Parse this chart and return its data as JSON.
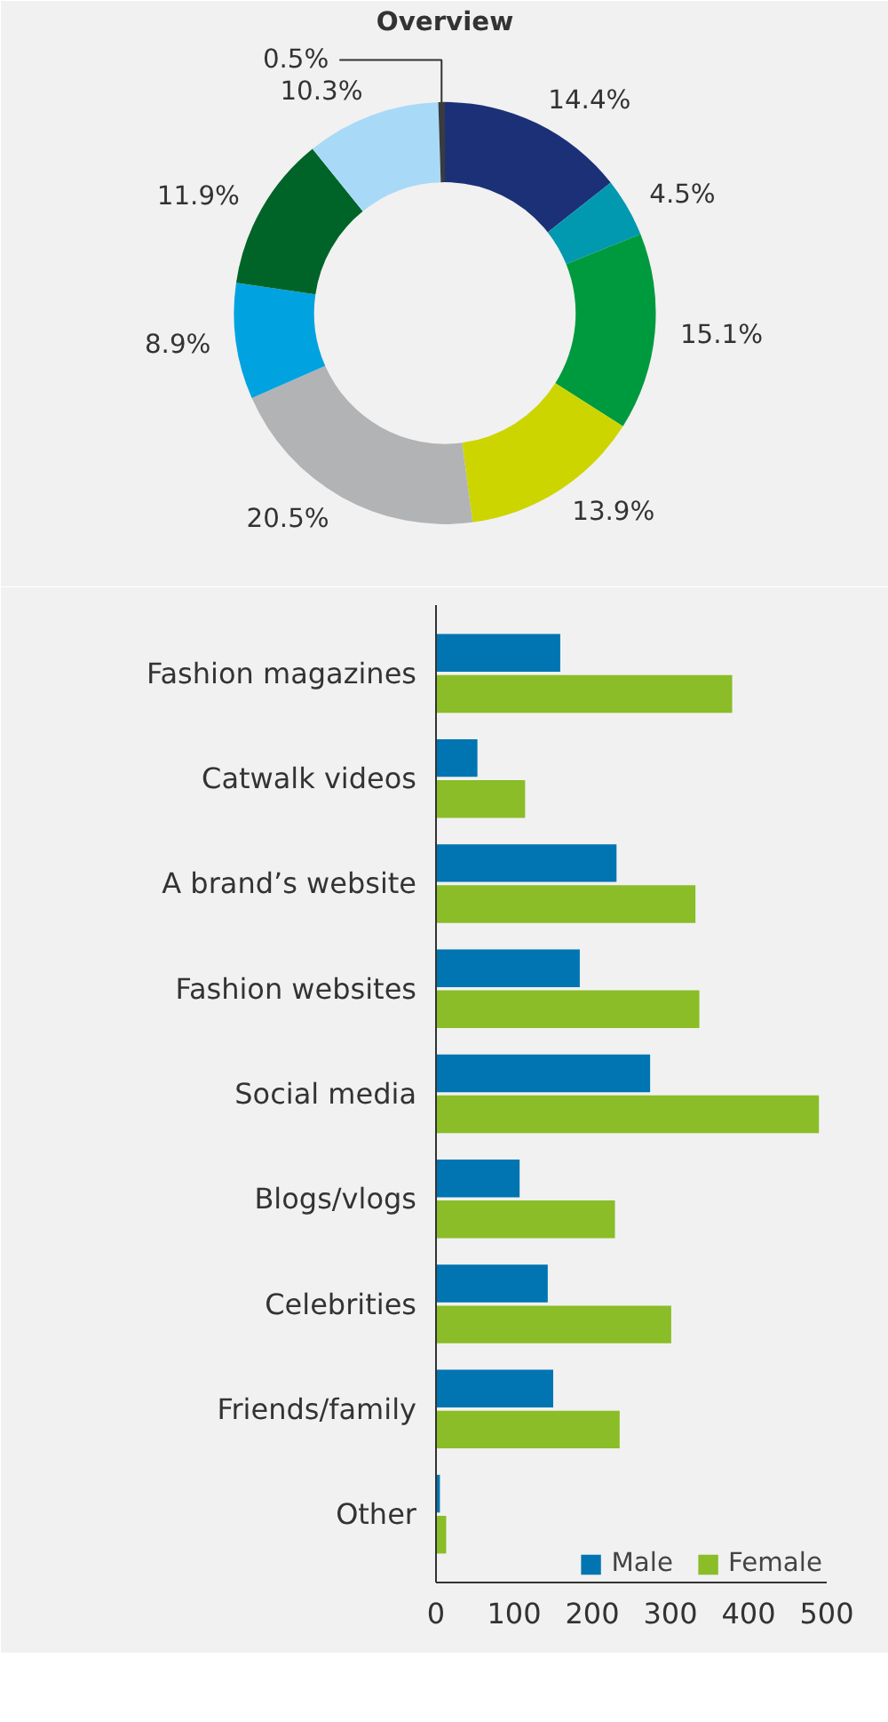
{
  "chart_data": [
    {
      "type": "donut",
      "title": "Overview",
      "categories": [
        null,
        null,
        null,
        null,
        null,
        null,
        null,
        null,
        null
      ],
      "values": [
        14.4,
        4.5,
        15.1,
        13.9,
        20.5,
        8.9,
        11.9,
        10.3,
        0.5
      ],
      "value_labels": [
        "14.4%",
        "4.5%",
        "15.1%",
        "13.9%",
        "20.5%",
        "8.9%",
        "11.9%",
        "10.3%",
        "0.5%"
      ],
      "colors": [
        "#1c3078",
        "#0099b0",
        "#009a3e",
        "#cdd500",
        "#b2b3b5",
        "#00a3e0",
        "#006428",
        "#a8daf8",
        "#3a3b3f"
      ]
    },
    {
      "type": "bar",
      "orientation": "horizontal",
      "categories": [
        "Fashion magazines",
        "Catwalk videos",
        "A brand’s website",
        "Fashion websites",
        "Social media",
        "Blogs/vlogs",
        "Celebrities",
        "Friends/family",
        "Other"
      ],
      "series": [
        {
          "name": "Male",
          "color": "#0075b2",
          "values": [
            159,
            53,
            231,
            184,
            274,
            107,
            143,
            150,
            5
          ]
        },
        {
          "name": "Female",
          "color": "#8abd27",
          "values": [
            379,
            114,
            332,
            337,
            490,
            229,
            301,
            235,
            13
          ]
        }
      ],
      "xlim": [
        0,
        500
      ],
      "xticks": [
        0,
        100,
        200,
        300,
        400,
        500
      ],
      "grid": false,
      "legend": "bottom"
    }
  ]
}
